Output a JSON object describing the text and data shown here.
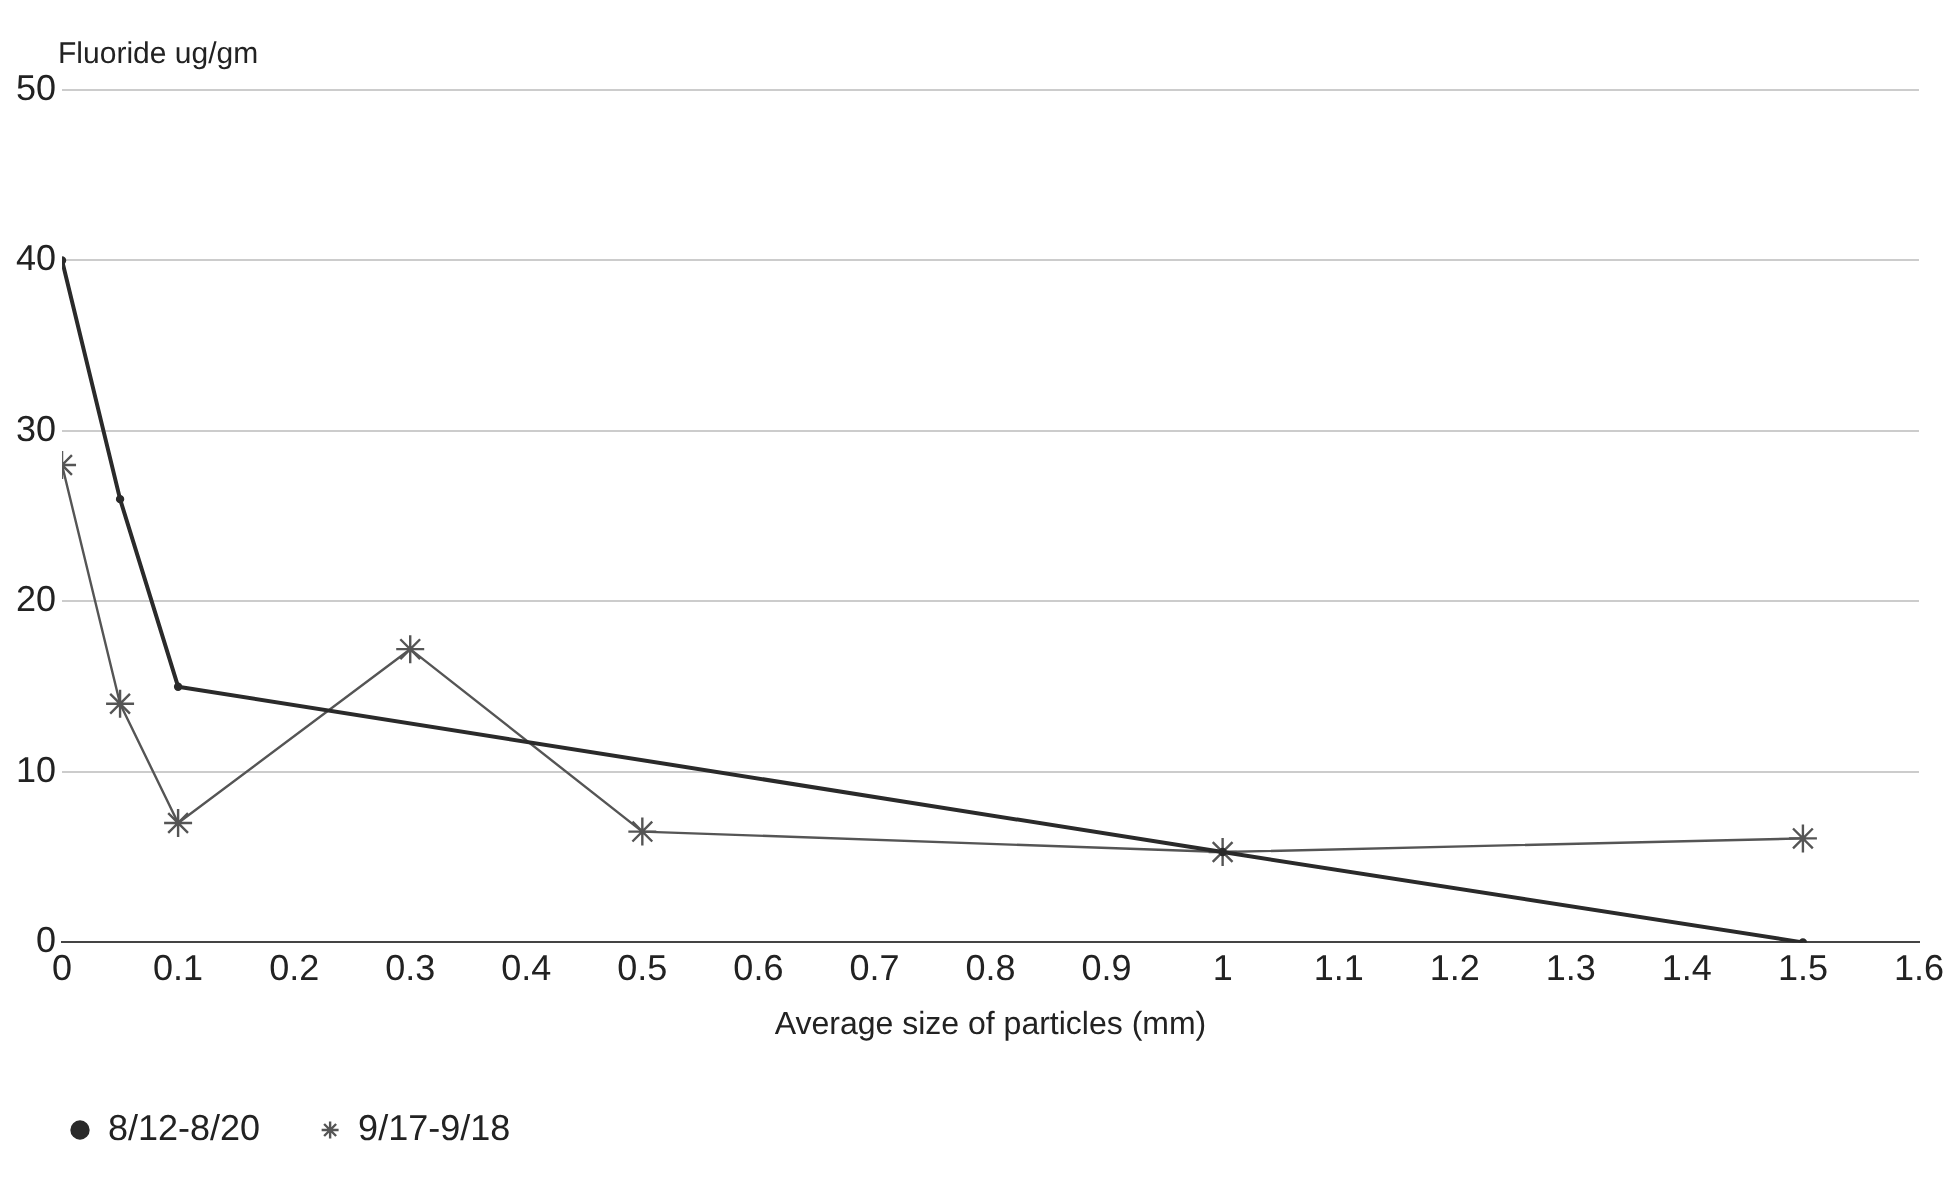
{
  "chart_data": {
    "type": "line",
    "ylabel": "Fluoride ug/gm",
    "xlabel": "Average size of particles (mm)",
    "xlim": [
      0,
      1.6
    ],
    "xticks": [
      0,
      0.1,
      0.2,
      0.3,
      0.4,
      0.5,
      0.6,
      0.7,
      0.8,
      0.9,
      1,
      1.1,
      1.2,
      1.3,
      1.4,
      1.5,
      1.6
    ],
    "ylim": [
      0,
      50
    ],
    "yticks": [
      0,
      10,
      20,
      30,
      40,
      50
    ],
    "grid": "y",
    "legend": "bottom left",
    "series": [
      {
        "name": "8/12-8/20",
        "color": "#2a2a2a",
        "marker": "circle",
        "x": [
          0,
          0.05,
          0.1,
          1,
          1.5
        ],
        "values": [
          40,
          26,
          15,
          5.3,
          0
        ]
      },
      {
        "name": "9/17-9/18",
        "color": "#555555",
        "marker": "cross",
        "x": [
          0,
          0.05,
          0.1,
          0.3,
          0.5,
          1,
          1.5
        ],
        "values": [
          28,
          14,
          7,
          17.2,
          6.5,
          5.3,
          6.1
        ]
      }
    ]
  }
}
